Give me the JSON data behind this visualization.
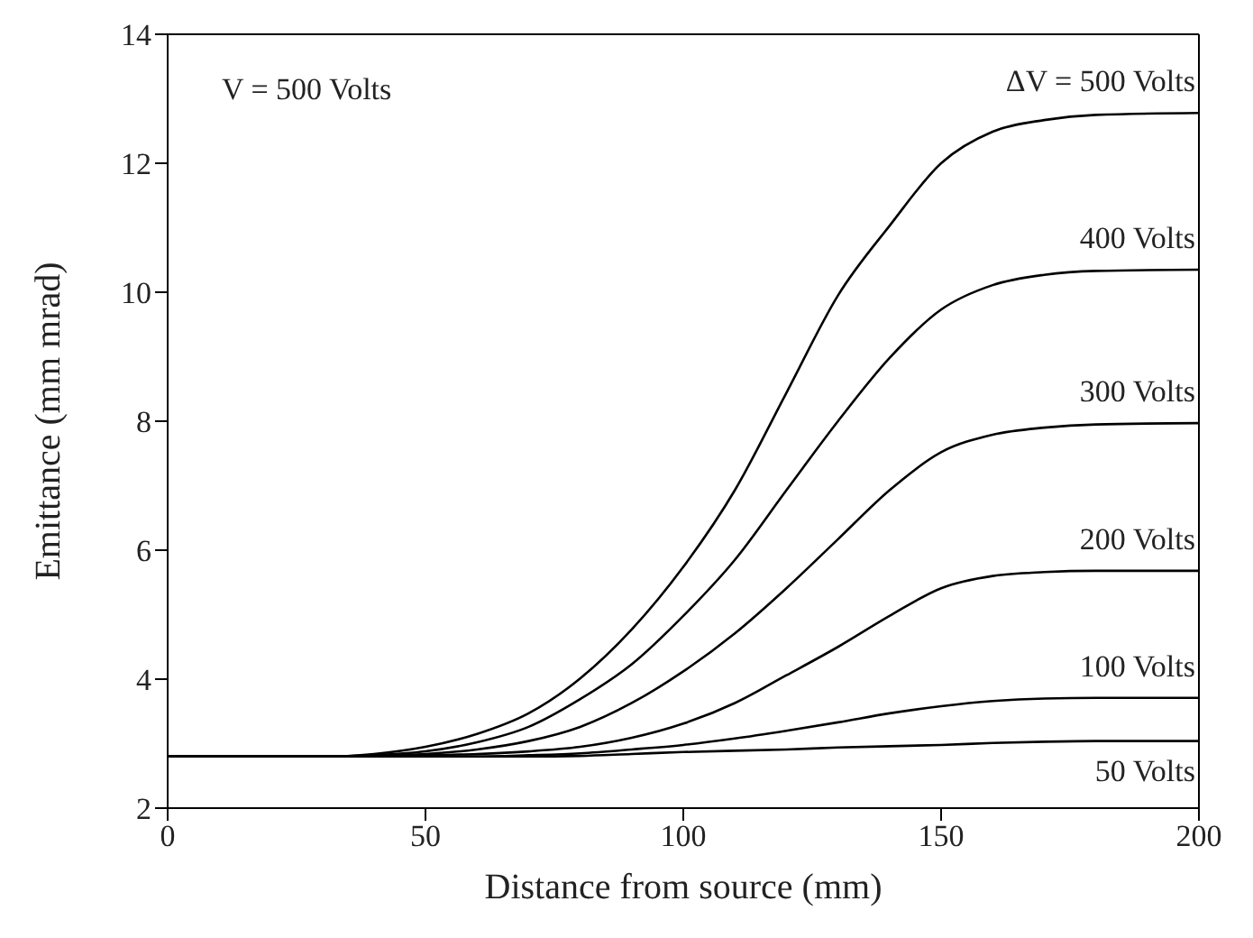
{
  "chart_data": {
    "type": "line",
    "xlabel": "Distance from source (mm)",
    "ylabel": "Emittance (mm mrad)",
    "xlim": [
      0,
      200
    ],
    "xticks": [
      0,
      50,
      100,
      150,
      200
    ],
    "ylim": [
      2,
      14
    ],
    "yticks": [
      2,
      4,
      6,
      8,
      10,
      12,
      14
    ],
    "legend": false,
    "marker": "none",
    "line_style": "solid",
    "annotations": [
      "V = 500 Volts"
    ],
    "x": [
      0,
      30,
      40,
      50,
      60,
      70,
      80,
      90,
      100,
      110,
      120,
      130,
      140,
      150,
      160,
      170,
      180,
      200
    ],
    "series": [
      {
        "name": "ΔV = 500 Volts",
        "color": "#000000",
        "values": [
          2.8,
          2.8,
          2.84,
          2.95,
          3.15,
          3.47,
          4.01,
          4.77,
          5.74,
          6.93,
          8.44,
          9.95,
          11.03,
          12.0,
          12.49,
          12.67,
          12.75,
          12.78
        ]
      },
      {
        "name": "400 Volts",
        "color": "#000000",
        "values": [
          2.8,
          2.8,
          2.82,
          2.88,
          3.02,
          3.26,
          3.69,
          4.23,
          4.98,
          5.85,
          6.93,
          8.0,
          8.98,
          9.73,
          10.11,
          10.27,
          10.33,
          10.35
        ]
      },
      {
        "name": "300 Volts",
        "color": "#000000",
        "values": [
          2.8,
          2.8,
          2.81,
          2.84,
          2.91,
          3.04,
          3.26,
          3.63,
          4.12,
          4.71,
          5.41,
          6.17,
          6.93,
          7.52,
          7.79,
          7.9,
          7.95,
          7.97
        ]
      },
      {
        "name": "200 Volts",
        "color": "#000000",
        "values": [
          2.8,
          2.8,
          2.8,
          2.82,
          2.84,
          2.88,
          2.95,
          3.09,
          3.31,
          3.63,
          4.06,
          4.5,
          4.98,
          5.41,
          5.6,
          5.66,
          5.68,
          5.68
        ]
      },
      {
        "name": "100 Volts",
        "color": "#000000",
        "values": [
          2.8,
          2.8,
          2.8,
          2.8,
          2.8,
          2.82,
          2.85,
          2.91,
          2.98,
          3.08,
          3.2,
          3.33,
          3.47,
          3.58,
          3.66,
          3.7,
          3.71,
          3.71
        ]
      },
      {
        "name": "50 Volts",
        "color": "#000000",
        "values": [
          2.8,
          2.8,
          2.8,
          2.8,
          2.8,
          2.8,
          2.81,
          2.84,
          2.87,
          2.89,
          2.91,
          2.94,
          2.96,
          2.98,
          3.01,
          3.03,
          3.04,
          3.04
        ]
      }
    ]
  }
}
